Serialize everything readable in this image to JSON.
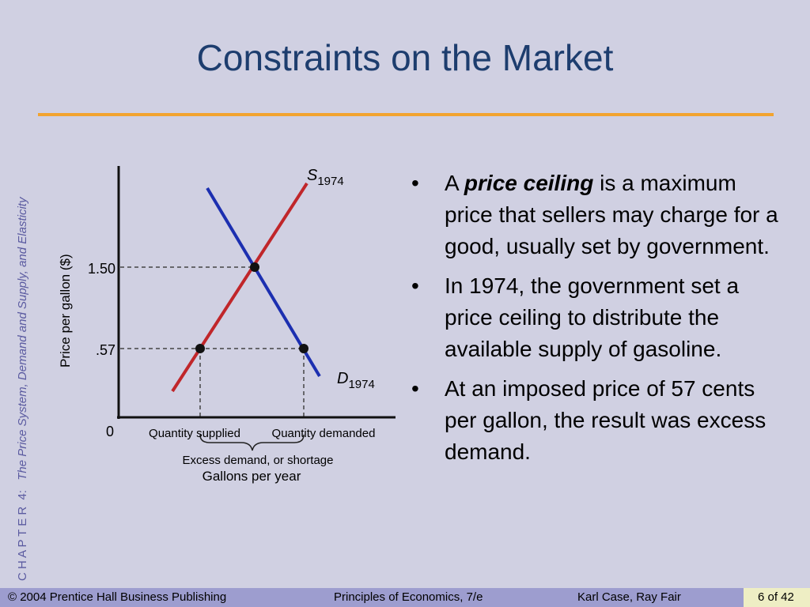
{
  "title": "Constraints on the Market",
  "sidebar": {
    "chapter": "C H A P T E R  4:",
    "subject": "The Price System, Demand and Supply, and Elasticity"
  },
  "diagram": {
    "supply_label": "S",
    "supply_subscript": "1974",
    "demand_label": "D",
    "demand_subscript": "1974",
    "y_axis_title": "Price per gallon ($)",
    "y_tick_labels": [
      "1.50",
      ".57",
      "0"
    ],
    "x_labels": [
      "Quantity supplied",
      "Quantity demanded"
    ],
    "brace_label": "Excess demand, or shortage",
    "x_axis_title": "Gallons per year"
  },
  "bullets": [
    {
      "lead": "A ",
      "emphasis": "price ceiling",
      "rest": " is a maximum price that sellers may charge for a good, usually set by government."
    },
    {
      "text": "In 1974, the government set a price ceiling to distribute the available supply of gasoline."
    },
    {
      "text": "At an imposed price of 57 cents per gallon, the result was excess demand."
    }
  ],
  "footer": {
    "copyright": "© 2004 Prentice Hall Business Publishing",
    "book": "Principles of Economics, 7/e",
    "authors": "Karl Case, Ray Fair",
    "page": "6 of 42"
  }
}
